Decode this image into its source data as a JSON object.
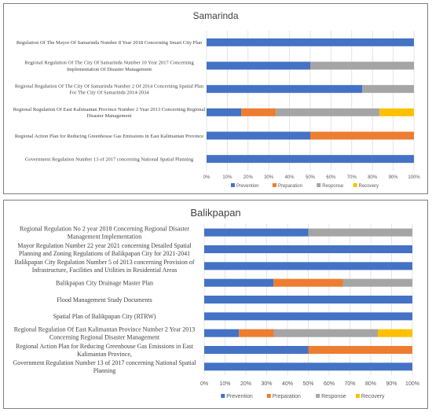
{
  "chart_data": [
    {
      "type": "bar",
      "orientation": "horizontal",
      "stacked": true,
      "title": "Samarinda",
      "categories": [
        "Regulation Of The Mayor Of Samarinda Number 8 Year 2018 Concerning Smart City Plan",
        "Regional Regulation Of The City Of Samarinda Number 10 Year 2017 Concerning Implementation Of Disaster Management",
        "Regional Regulation Of The City Of Samarinda Number 2 Of 2014 Concerning Spatial Plan For The City Of Samarinda 2014-2034",
        "Regional Regulation Of East Kalimantan Province Number 2 Year 2013 Concerning Regional Disaster Management",
        "Regional Action Plan for Reducing Greenhouse Gas Emissions in East Kalimantan Province",
        "Government Regulation Number 13 of 2017 concerning National Spatial Planning"
      ],
      "series": [
        {
          "name": "Prevention",
          "color": "#4472c4",
          "values": [
            100,
            50,
            75,
            16.7,
            50,
            100
          ]
        },
        {
          "name": "Preparation",
          "color": "#ed7d31",
          "values": [
            0,
            0,
            0,
            16.7,
            50,
            0
          ]
        },
        {
          "name": "Response",
          "color": "#a5a5a5",
          "values": [
            0,
            50,
            25,
            50,
            0,
            0
          ]
        },
        {
          "name": "Recovery",
          "color": "#ffc000",
          "values": [
            0,
            0,
            0,
            16.6,
            0,
            0
          ]
        }
      ],
      "xlim": [
        0,
        100
      ],
      "x_ticks": [
        "0%",
        "10%",
        "20%",
        "30%",
        "40%",
        "50%",
        "60%",
        "70%",
        "80%",
        "90%",
        "100%"
      ],
      "grid": true,
      "legend": "bottom"
    },
    {
      "type": "bar",
      "orientation": "horizontal",
      "stacked": true,
      "title": "Balikpapan",
      "categories": [
        "Regional Regulation No 2 year 2018 Concerning Regional Disaster Management Implementation",
        "Mayor Regulation Number 22 year 2021 concerning Detailed Spatial Planning and Zoning Regulations of Balikpapan City for 2021-2041",
        "Balikpapan City Regulation Number 5 of 2013 concerning Provision of Infrastructure, Facilities and Utilities in Residential Areas",
        "Balikpapan City Drainage Master Plan",
        "Flood Management Study Documents",
        "Spatial Plan of Balikpapan City (RTRW)",
        "Regional Regulation Of East Kalimantan Province Number 2 Year 2013 Concerning Regional Disaster Management",
        "Regional Action Plan for Reducing Greenhouse Gas Emissions in East Kalimantan Province,",
        "Government Regulation Number 13 of 2017 concerning National Spatial Planning"
      ],
      "series": [
        {
          "name": "Prevention",
          "color": "#4472c4",
          "values": [
            50,
            100,
            100,
            33.3,
            100,
            100,
            16.7,
            50,
            100
          ]
        },
        {
          "name": "Preparation",
          "color": "#ed7d31",
          "values": [
            0,
            0,
            0,
            33.3,
            0,
            0,
            16.7,
            50,
            0
          ]
        },
        {
          "name": "Response",
          "color": "#a5a5a5",
          "values": [
            50,
            0,
            0,
            33.4,
            0,
            0,
            50,
            0,
            0
          ]
        },
        {
          "name": "Recovery",
          "color": "#ffc000",
          "values": [
            0,
            0,
            0,
            0,
            0,
            0,
            16.6,
            0,
            0
          ]
        }
      ],
      "xlim": [
        0,
        100
      ],
      "x_ticks": [
        "0%",
        "10%",
        "20%",
        "30%",
        "40%",
        "50%",
        "60%",
        "70%",
        "80%",
        "90%",
        "100%"
      ],
      "grid": true,
      "legend": "bottom"
    }
  ]
}
